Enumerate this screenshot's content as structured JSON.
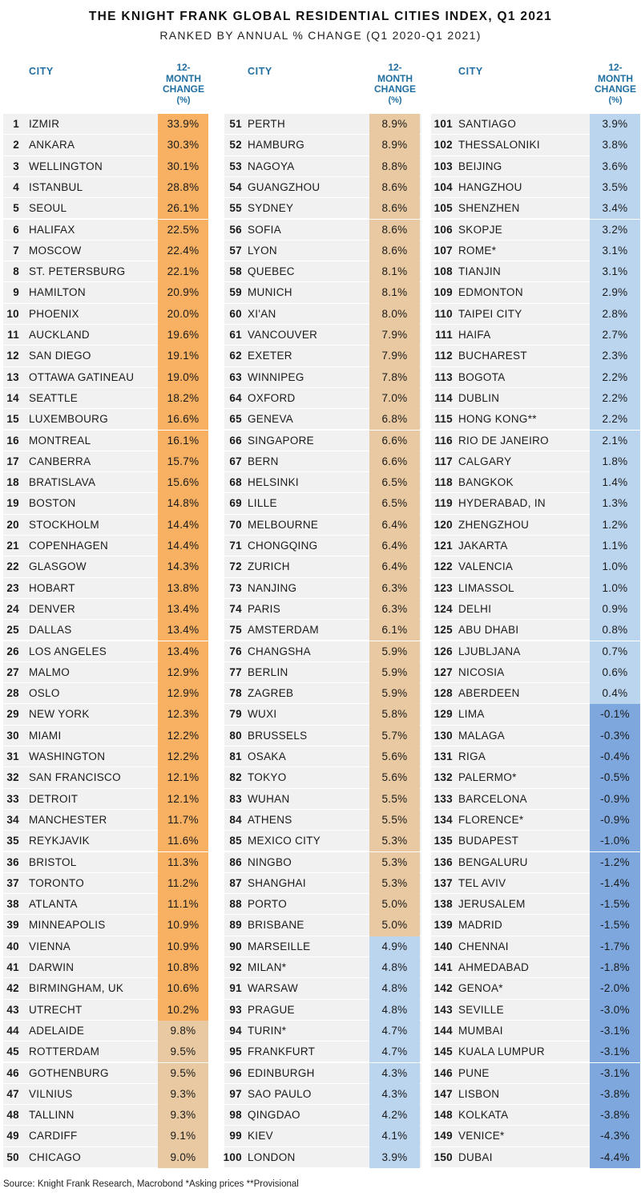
{
  "title": "THE KNIGHT FRANK GLOBAL RESIDENTIAL CITIES INDEX, Q1 2021",
  "subtitle": "RANKED BY ANNUAL % CHANGE (Q1 2020-Q1 2021)",
  "header": {
    "city": "CITY",
    "change_l1": "12-",
    "change_l2": "MONTH",
    "change_l3": "CHANGE",
    "change_l4": "(%)"
  },
  "footer": "Source: Knight Frank Research, Macrobond   *Asking prices **Provisional",
  "colors": {
    "orange_strong": "#f8b062",
    "orange_light": "#e8c9a2",
    "blue_light": "#bcd5ef",
    "blue_strong": "#7ea8dd",
    "header_blue": "#1f6fa1",
    "row_band": "#f1f1f1"
  },
  "chart_data": {
    "type": "table",
    "title": "THE KNIGHT FRANK GLOBAL RESIDENTIAL CITIES INDEX, Q1 2021",
    "subtitle": "RANKED BY ANNUAL % CHANGE (Q1 2020-Q1 2021)",
    "columns": [
      "CITY",
      "12-MONTH CHANGE (%)"
    ],
    "rows": [
      {
        "rank": "1",
        "city": "IZMIR",
        "change": "33.9%"
      },
      {
        "rank": "2",
        "city": "ANKARA",
        "change": "30.3%"
      },
      {
        "rank": "3",
        "city": "WELLINGTON",
        "change": "30.1%"
      },
      {
        "rank": "4",
        "city": "ISTANBUL",
        "change": "28.8%"
      },
      {
        "rank": "5",
        "city": "SEOUL",
        "change": "26.1%"
      },
      {
        "rank": "6",
        "city": "HALIFAX",
        "change": "22.5%"
      },
      {
        "rank": "7",
        "city": "MOSCOW",
        "change": "22.4%"
      },
      {
        "rank": "8",
        "city": "ST. PETERSBURG",
        "change": "22.1%"
      },
      {
        "rank": "9",
        "city": "HAMILTON",
        "change": "20.9%"
      },
      {
        "rank": "10",
        "city": "PHOENIX",
        "change": "20.0%"
      },
      {
        "rank": "11",
        "city": "AUCKLAND",
        "change": "19.6%"
      },
      {
        "rank": "12",
        "city": "SAN DIEGO",
        "change": "19.1%"
      },
      {
        "rank": "13",
        "city": "OTTAWA GATINEAU",
        "change": "19.0%"
      },
      {
        "rank": "14",
        "city": "SEATTLE",
        "change": "18.2%"
      },
      {
        "rank": "15",
        "city": "LUXEMBOURG",
        "change": "16.6%"
      },
      {
        "rank": "16",
        "city": "MONTREAL",
        "change": "16.1%"
      },
      {
        "rank": "17",
        "city": "CANBERRA",
        "change": "15.7%"
      },
      {
        "rank": "18",
        "city": "BRATISLAVA",
        "change": "15.6%"
      },
      {
        "rank": "19",
        "city": "BOSTON",
        "change": "14.8%"
      },
      {
        "rank": "20",
        "city": "STOCKHOLM",
        "change": "14.4%"
      },
      {
        "rank": "21",
        "city": "COPENHAGEN",
        "change": "14.4%"
      },
      {
        "rank": "22",
        "city": "GLASGOW",
        "change": "14.3%"
      },
      {
        "rank": "23",
        "city": "HOBART",
        "change": "13.8%"
      },
      {
        "rank": "24",
        "city": "DENVER",
        "change": "13.4%"
      },
      {
        "rank": "25",
        "city": "DALLAS",
        "change": "13.4%"
      },
      {
        "rank": "26",
        "city": "LOS ANGELES",
        "change": "13.4%"
      },
      {
        "rank": "27",
        "city": "MALMO",
        "change": "12.9%"
      },
      {
        "rank": "28",
        "city": "OSLO",
        "change": "12.9%"
      },
      {
        "rank": "29",
        "city": "NEW YORK",
        "change": "12.3%"
      },
      {
        "rank": "30",
        "city": "MIAMI",
        "change": "12.2%"
      },
      {
        "rank": "31",
        "city": "WASHINGTON",
        "change": "12.2%"
      },
      {
        "rank": "32",
        "city": "SAN FRANCISCO",
        "change": "12.1%"
      },
      {
        "rank": "33",
        "city": "DETROIT",
        "change": "12.1%"
      },
      {
        "rank": "34",
        "city": "MANCHESTER",
        "change": "11.7%"
      },
      {
        "rank": "35",
        "city": "REYKJAVIK",
        "change": "11.6%"
      },
      {
        "rank": "36",
        "city": "BRISTOL",
        "change": "11.3%"
      },
      {
        "rank": "37",
        "city": "TORONTO",
        "change": "11.2%"
      },
      {
        "rank": "38",
        "city": "ATLANTA",
        "change": "11.1%"
      },
      {
        "rank": "39",
        "city": "MINNEAPOLIS",
        "change": "10.9%"
      },
      {
        "rank": "40",
        "city": "VIENNA",
        "change": "10.9%"
      },
      {
        "rank": "41",
        "city": "DARWIN",
        "change": "10.8%"
      },
      {
        "rank": "42",
        "city": "BIRMINGHAM, UK",
        "change": "10.6%"
      },
      {
        "rank": "43",
        "city": "UTRECHT",
        "change": "10.2%"
      },
      {
        "rank": "44",
        "city": "ADELAIDE",
        "change": "9.8%"
      },
      {
        "rank": "45",
        "city": "ROTTERDAM",
        "change": "9.5%"
      },
      {
        "rank": "46",
        "city": "GOTHENBURG",
        "change": "9.5%"
      },
      {
        "rank": "47",
        "city": "VILNIUS",
        "change": "9.3%"
      },
      {
        "rank": "48",
        "city": "TALLINN",
        "change": "9.3%"
      },
      {
        "rank": "49",
        "city": "CARDIFF",
        "change": "9.1%"
      },
      {
        "rank": "50",
        "city": "CHICAGO",
        "change": "9.0%"
      },
      {
        "rank": "51",
        "city": "PERTH",
        "change": "8.9%"
      },
      {
        "rank": "52",
        "city": "HAMBURG",
        "change": "8.9%"
      },
      {
        "rank": "53",
        "city": "NAGOYA",
        "change": "8.8%"
      },
      {
        "rank": "54",
        "city": "GUANGZHOU",
        "change": "8.6%"
      },
      {
        "rank": "55",
        "city": "SYDNEY",
        "change": "8.6%"
      },
      {
        "rank": "56",
        "city": "SOFIA",
        "change": "8.6%"
      },
      {
        "rank": "57",
        "city": "LYON",
        "change": "8.6%"
      },
      {
        "rank": "58",
        "city": "QUEBEC",
        "change": "8.1%"
      },
      {
        "rank": "59",
        "city": "MUNICH",
        "change": "8.1%"
      },
      {
        "rank": "60",
        "city": "XI'AN",
        "change": "8.0%"
      },
      {
        "rank": "61",
        "city": "VANCOUVER",
        "change": "7.9%"
      },
      {
        "rank": "62",
        "city": "EXETER",
        "change": "7.9%"
      },
      {
        "rank": "63",
        "city": "WINNIPEG",
        "change": "7.8%"
      },
      {
        "rank": "64",
        "city": "OXFORD",
        "change": "7.0%"
      },
      {
        "rank": "65",
        "city": "GENEVA",
        "change": "6.8%"
      },
      {
        "rank": "66",
        "city": "SINGAPORE",
        "change": "6.6%"
      },
      {
        "rank": "67",
        "city": "BERN",
        "change": "6.6%"
      },
      {
        "rank": "68",
        "city": "HELSINKI",
        "change": "6.5%"
      },
      {
        "rank": "69",
        "city": "LILLE",
        "change": "6.5%"
      },
      {
        "rank": "70",
        "city": "MELBOURNE",
        "change": "6.4%"
      },
      {
        "rank": "71",
        "city": "CHONGQING",
        "change": "6.4%"
      },
      {
        "rank": "72",
        "city": "ZURICH",
        "change": "6.4%"
      },
      {
        "rank": "73",
        "city": "NANJING",
        "change": "6.3%"
      },
      {
        "rank": "74",
        "city": "PARIS",
        "change": "6.3%"
      },
      {
        "rank": "75",
        "city": "AMSTERDAM",
        "change": "6.1%"
      },
      {
        "rank": "76",
        "city": "CHANGSHA",
        "change": "5.9%"
      },
      {
        "rank": "77",
        "city": "BERLIN",
        "change": "5.9%"
      },
      {
        "rank": "78",
        "city": "ZAGREB",
        "change": "5.9%"
      },
      {
        "rank": "79",
        "city": "WUXI",
        "change": "5.8%"
      },
      {
        "rank": "80",
        "city": "BRUSSELS",
        "change": "5.7%"
      },
      {
        "rank": "81",
        "city": "OSAKA",
        "change": "5.6%"
      },
      {
        "rank": "82",
        "city": "TOKYO",
        "change": "5.6%"
      },
      {
        "rank": "83",
        "city": "WUHAN",
        "change": "5.5%"
      },
      {
        "rank": "84",
        "city": "ATHENS",
        "change": "5.5%"
      },
      {
        "rank": "85",
        "city": "MEXICO CITY",
        "change": "5.3%"
      },
      {
        "rank": "86",
        "city": "NINGBO",
        "change": "5.3%"
      },
      {
        "rank": "87",
        "city": "SHANGHAI",
        "change": "5.3%"
      },
      {
        "rank": "88",
        "city": "PORTO",
        "change": "5.0%"
      },
      {
        "rank": "89",
        "city": "BRISBANE",
        "change": "5.0%"
      },
      {
        "rank": "90",
        "city": "MARSEILLE",
        "change": "4.9%"
      },
      {
        "rank": "92",
        "city": "MILAN*",
        "change": "4.8%"
      },
      {
        "rank": "91",
        "city": "WARSAW",
        "change": "4.8%"
      },
      {
        "rank": "93",
        "city": "PRAGUE",
        "change": "4.8%"
      },
      {
        "rank": "94",
        "city": "TURIN*",
        "change": "4.7%"
      },
      {
        "rank": "95",
        "city": "FRANKFURT",
        "change": "4.7%"
      },
      {
        "rank": "96",
        "city": "EDINBURGH",
        "change": "4.3%"
      },
      {
        "rank": "97",
        "city": "SAO PAULO",
        "change": "4.3%"
      },
      {
        "rank": "98",
        "city": "QINGDAO",
        "change": "4.2%"
      },
      {
        "rank": "99",
        "city": "KIEV",
        "change": "4.1%"
      },
      {
        "rank": "100",
        "city": "LONDON",
        "change": "3.9%"
      },
      {
        "rank": "101",
        "city": "SANTIAGO",
        "change": "3.9%"
      },
      {
        "rank": "102",
        "city": "THESSALONIKI",
        "change": "3.8%"
      },
      {
        "rank": "103",
        "city": "BEIJING",
        "change": "3.6%"
      },
      {
        "rank": "104",
        "city": "HANGZHOU",
        "change": "3.5%"
      },
      {
        "rank": "105",
        "city": "SHENZHEN",
        "change": "3.4%"
      },
      {
        "rank": "106",
        "city": "SKOPJE",
        "change": "3.2%"
      },
      {
        "rank": "107",
        "city": "ROME*",
        "change": "3.1%"
      },
      {
        "rank": "108",
        "city": "TIANJIN",
        "change": "3.1%"
      },
      {
        "rank": "109",
        "city": "EDMONTON",
        "change": "2.9%"
      },
      {
        "rank": "110",
        "city": "TAIPEI CITY",
        "change": "2.8%"
      },
      {
        "rank": "111",
        "city": "HAIFA",
        "change": "2.7%"
      },
      {
        "rank": "112",
        "city": "BUCHAREST",
        "change": "2.3%"
      },
      {
        "rank": "113",
        "city": "BOGOTA",
        "change": "2.2%"
      },
      {
        "rank": "114",
        "city": "DUBLIN",
        "change": "2.2%"
      },
      {
        "rank": "115",
        "city": "HONG KONG**",
        "change": "2.2%"
      },
      {
        "rank": "116",
        "city": "RIO DE JANEIRO",
        "change": "2.1%"
      },
      {
        "rank": "117",
        "city": "CALGARY",
        "change": "1.8%"
      },
      {
        "rank": "118",
        "city": "BANGKOK",
        "change": "1.4%"
      },
      {
        "rank": "119",
        "city": "HYDERABAD, IN",
        "change": "1.3%"
      },
      {
        "rank": "120",
        "city": "ZHENGZHOU",
        "change": "1.2%"
      },
      {
        "rank": "121",
        "city": "JAKARTA",
        "change": "1.1%"
      },
      {
        "rank": "122",
        "city": "VALENCIA",
        "change": "1.0%"
      },
      {
        "rank": "123",
        "city": "LIMASSOL",
        "change": "1.0%"
      },
      {
        "rank": "124",
        "city": "DELHI",
        "change": "0.9%"
      },
      {
        "rank": "125",
        "city": "ABU DHABI",
        "change": "0.8%"
      },
      {
        "rank": "126",
        "city": "LJUBLJANA",
        "change": "0.7%"
      },
      {
        "rank": "127",
        "city": "NICOSIA",
        "change": "0.6%"
      },
      {
        "rank": "128",
        "city": "ABERDEEN",
        "change": "0.4%"
      },
      {
        "rank": "129",
        "city": "LIMA",
        "change": "-0.1%"
      },
      {
        "rank": "130",
        "city": "MALAGA",
        "change": "-0.3%"
      },
      {
        "rank": "131",
        "city": "RIGA",
        "change": "-0.4%"
      },
      {
        "rank": "132",
        "city": "PALERMO*",
        "change": "-0.5%"
      },
      {
        "rank": "133",
        "city": "BARCELONA",
        "change": "-0.9%"
      },
      {
        "rank": "134",
        "city": "FLORENCE*",
        "change": "-0.9%"
      },
      {
        "rank": "135",
        "city": "BUDAPEST",
        "change": "-1.0%"
      },
      {
        "rank": "136",
        "city": "BENGALURU",
        "change": "-1.2%"
      },
      {
        "rank": "137",
        "city": "TEL AVIV",
        "change": "-1.4%"
      },
      {
        "rank": "138",
        "city": "JERUSALEM",
        "change": "-1.5%"
      },
      {
        "rank": "139",
        "city": "MADRID",
        "change": "-1.5%"
      },
      {
        "rank": "140",
        "city": "CHENNAI",
        "change": "-1.7%"
      },
      {
        "rank": "141",
        "city": "AHMEDABAD",
        "change": "-1.8%"
      },
      {
        "rank": "142",
        "city": "GENOA*",
        "change": "-2.0%"
      },
      {
        "rank": "143",
        "city": "SEVILLE",
        "change": "-3.0%"
      },
      {
        "rank": "144",
        "city": "MUMBAI",
        "change": "-3.1%"
      },
      {
        "rank": "145",
        "city": "KUALA LUMPUR",
        "change": "-3.1%"
      },
      {
        "rank": "146",
        "city": "PUNE",
        "change": "-3.1%"
      },
      {
        "rank": "147",
        "city": "LISBON",
        "change": "-3.8%"
      },
      {
        "rank": "148",
        "city": "KOLKATA",
        "change": "-3.8%"
      },
      {
        "rank": "149",
        "city": "VENICE*",
        "change": "-4.3%"
      },
      {
        "rank": "150",
        "city": "DUBAI",
        "change": "-4.4%"
      }
    ]
  }
}
